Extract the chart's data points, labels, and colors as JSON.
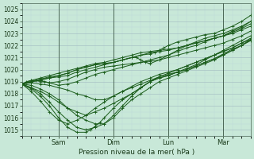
{
  "xlabel": "Pression niveau de la mer( hPa )",
  "ylim": [
    1014.5,
    1025.5
  ],
  "xlim": [
    0,
    100
  ],
  "yticks": [
    1015,
    1016,
    1017,
    1018,
    1019,
    1020,
    1021,
    1022,
    1023,
    1024,
    1025
  ],
  "xtick_positions": [
    16,
    40,
    64,
    88
  ],
  "xtick_labels": [
    "Sam",
    "Dim",
    "Lun",
    "Mar"
  ],
  "bg_color": "#c8e8d8",
  "grid_major_color": "#a0b8c0",
  "grid_minor_color": "#b8d0d8",
  "line_color": "#1a5c1a",
  "line_width": 0.7,
  "marker": "+",
  "markersize": 2.5,
  "fig_bg": "#c8e8d8",
  "series": [
    {
      "x": [
        0,
        2,
        4,
        6,
        8,
        10,
        12,
        16,
        20,
        24,
        28,
        32,
        36,
        40,
        44,
        48,
        52,
        56,
        60,
        64,
        68,
        72,
        76,
        80,
        84,
        88,
        92,
        96,
        100
      ],
      "y": [
        1018.8,
        1019.0,
        1019.1,
        1019.1,
        1019.0,
        1019.0,
        1018.9,
        1019.0,
        1019.2,
        1019.5,
        1019.8,
        1020.0,
        1020.2,
        1020.3,
        1020.4,
        1020.5,
        1020.6,
        1020.7,
        1020.8,
        1021.0,
        1021.2,
        1021.4,
        1021.6,
        1021.8,
        1022.0,
        1022.2,
        1022.5,
        1022.8,
        1023.2
      ]
    },
    {
      "x": [
        0,
        4,
        8,
        12,
        16,
        20,
        24,
        28,
        32,
        36,
        40,
        44,
        48,
        52,
        56,
        60,
        64,
        68,
        72,
        76,
        80,
        84,
        88,
        92,
        96,
        100
      ],
      "y": [
        1018.8,
        1019.0,
        1019.1,
        1018.9,
        1018.7,
        1018.8,
        1019.0,
        1019.3,
        1019.6,
        1019.8,
        1020.0,
        1020.2,
        1020.4,
        1020.6,
        1020.8,
        1021.0,
        1021.2,
        1021.5,
        1021.8,
        1022.0,
        1022.3,
        1022.6,
        1022.8,
        1023.2,
        1023.5,
        1024.0
      ]
    },
    {
      "x": [
        0,
        4,
        8,
        12,
        16,
        20,
        24,
        28,
        32,
        36,
        40,
        44,
        48,
        52,
        56,
        60,
        64,
        68,
        72,
        76,
        80,
        84,
        88,
        92,
        96,
        100
      ],
      "y": [
        1018.8,
        1018.9,
        1018.8,
        1018.7,
        1018.5,
        1018.3,
        1018.0,
        1017.8,
        1017.5,
        1017.5,
        1017.8,
        1018.2,
        1018.6,
        1019.0,
        1019.3,
        1019.6,
        1019.8,
        1020.0,
        1020.3,
        1020.6,
        1020.9,
        1021.2,
        1021.5,
        1021.8,
        1022.2,
        1022.5
      ]
    },
    {
      "x": [
        0,
        4,
        8,
        12,
        16,
        20,
        24,
        28,
        32,
        36,
        40,
        44,
        48,
        52,
        56,
        60,
        64,
        68,
        72,
        76,
        80,
        84,
        88,
        92,
        96,
        100
      ],
      "y": [
        1018.8,
        1018.7,
        1018.4,
        1018.0,
        1017.5,
        1016.8,
        1016.2,
        1015.8,
        1015.5,
        1015.5,
        1016.0,
        1016.8,
        1017.5,
        1018.0,
        1018.5,
        1019.0,
        1019.3,
        1019.6,
        1019.9,
        1020.2,
        1020.5,
        1020.8,
        1021.2,
        1021.6,
        1022.0,
        1022.5
      ]
    },
    {
      "x": [
        0,
        4,
        8,
        12,
        16,
        20,
        24,
        28,
        32,
        36,
        40,
        44,
        48,
        52,
        56,
        60,
        64,
        68,
        72,
        76,
        80,
        84,
        88,
        92,
        96,
        100
      ],
      "y": [
        1018.8,
        1018.5,
        1018.0,
        1017.3,
        1016.5,
        1015.8,
        1015.2,
        1015.0,
        1015.2,
        1015.5,
        1016.2,
        1017.0,
        1017.8,
        1018.5,
        1019.0,
        1019.3,
        1019.5,
        1019.8,
        1020.0,
        1020.3,
        1020.6,
        1020.9,
        1021.3,
        1021.7,
        1022.0,
        1022.4
      ]
    },
    {
      "x": [
        0,
        4,
        8,
        12,
        16,
        20,
        24,
        28,
        30,
        32,
        34,
        36,
        40,
        44,
        48,
        52,
        56,
        60,
        64,
        68,
        72,
        76,
        80,
        84,
        88,
        92,
        96,
        100
      ],
      "y": [
        1018.8,
        1018.4,
        1017.8,
        1017.0,
        1016.0,
        1015.2,
        1014.8,
        1014.8,
        1015.0,
        1015.3,
        1015.6,
        1016.0,
        1016.8,
        1017.5,
        1018.0,
        1018.5,
        1019.0,
        1019.3,
        1019.5,
        1019.8,
        1020.1,
        1020.4,
        1020.8,
        1021.2,
        1021.6,
        1022.0,
        1022.4,
        1022.8
      ]
    },
    {
      "x": [
        0,
        4,
        8,
        12,
        16,
        20,
        24,
        28,
        32,
        36,
        40,
        44,
        48,
        52,
        56,
        60,
        64,
        68,
        72,
        76,
        80,
        84,
        88,
        92,
        96,
        100
      ],
      "y": [
        1018.8,
        1018.2,
        1017.4,
        1016.5,
        1015.8,
        1015.5,
        1015.8,
        1016.2,
        1016.8,
        1017.3,
        1017.8,
        1018.2,
        1018.5,
        1018.8,
        1019.1,
        1019.4,
        1019.6,
        1019.8,
        1020.0,
        1020.3,
        1020.6,
        1020.9,
        1021.2,
        1021.6,
        1022.0,
        1022.5
      ]
    },
    {
      "x": [
        0,
        4,
        8,
        12,
        16,
        20,
        24,
        28,
        32,
        36,
        40,
        44,
        48,
        52,
        56,
        60,
        64,
        68,
        72,
        76,
        80,
        84,
        88,
        92,
        96,
        100
      ],
      "y": [
        1018.8,
        1018.5,
        1018.2,
        1017.8,
        1017.3,
        1016.8,
        1016.5,
        1016.2,
        1016.5,
        1016.8,
        1017.2,
        1017.6,
        1018.0,
        1018.5,
        1019.0,
        1019.4,
        1019.7,
        1020.0,
        1020.3,
        1020.6,
        1020.9,
        1021.2,
        1021.5,
        1021.8,
        1022.2,
        1022.6
      ]
    },
    {
      "x": [
        0,
        4,
        8,
        12,
        16,
        20,
        24,
        28,
        32,
        36,
        40,
        44,
        48,
        52,
        56,
        60,
        64,
        68,
        72,
        76,
        80,
        84,
        88,
        92,
        96,
        100
      ],
      "y": [
        1018.8,
        1019.0,
        1019.2,
        1019.3,
        1019.4,
        1019.5,
        1019.8,
        1020.0,
        1020.2,
        1020.4,
        1020.6,
        1020.8,
        1021.0,
        1021.2,
        1021.4,
        1021.5,
        1021.6,
        1021.8,
        1022.0,
        1022.2,
        1022.4,
        1022.6,
        1022.8,
        1023.0,
        1023.3,
        1023.6
      ]
    },
    {
      "x": [
        0,
        4,
        8,
        12,
        16,
        20,
        24,
        28,
        32,
        36,
        40,
        44,
        48,
        52,
        56,
        60,
        64,
        68,
        72,
        76,
        80,
        84,
        88,
        92,
        96,
        100
      ],
      "y": [
        1018.8,
        1019.1,
        1019.3,
        1019.5,
        1019.7,
        1019.9,
        1020.1,
        1020.3,
        1020.5,
        1020.6,
        1020.8,
        1021.0,
        1021.2,
        1021.4,
        1021.5,
        1021.6,
        1021.7,
        1021.8,
        1022.0,
        1022.2,
        1022.4,
        1022.6,
        1022.8,
        1023.1,
        1023.4,
        1023.8
      ]
    },
    {
      "x": [
        0,
        4,
        8,
        12,
        16,
        20,
        24,
        28,
        32,
        36,
        40,
        44,
        48,
        50,
        52,
        54,
        56,
        60,
        64,
        68,
        72,
        76,
        80,
        84,
        88,
        92,
        96,
        100
      ],
      "y": [
        1018.8,
        1019.0,
        1019.2,
        1019.4,
        1019.5,
        1019.7,
        1020.0,
        1020.2,
        1020.4,
        1020.5,
        1020.6,
        1020.8,
        1021.0,
        1021.0,
        1020.8,
        1020.6,
        1020.5,
        1020.8,
        1021.2,
        1021.6,
        1022.0,
        1022.3,
        1022.6,
        1022.8,
        1023.0,
        1023.3,
        1023.6,
        1024.0
      ]
    },
    {
      "x": [
        0,
        4,
        8,
        12,
        16,
        20,
        24,
        28,
        32,
        36,
        40,
        44,
        48,
        52,
        56,
        58,
        60,
        62,
        64,
        68,
        72,
        76,
        80,
        84,
        88,
        92,
        96,
        100
      ],
      "y": [
        1018.8,
        1019.0,
        1019.1,
        1019.3,
        1019.5,
        1019.7,
        1020.0,
        1020.2,
        1020.4,
        1020.5,
        1020.6,
        1020.8,
        1021.0,
        1021.2,
        1021.3,
        1021.4,
        1021.6,
        1021.8,
        1022.0,
        1022.3,
        1022.5,
        1022.7,
        1022.9,
        1023.0,
        1023.3,
        1023.6,
        1024.0,
        1024.5
      ]
    }
  ]
}
